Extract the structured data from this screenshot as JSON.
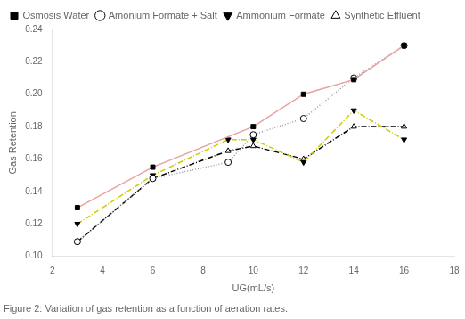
{
  "chart_data": {
    "type": "line",
    "title": "Figure 2: Variation of gas retention as a function of aeration rates.",
    "x_label": "UG(mL/s)",
    "y_label": "Gas Retention",
    "xlim": [
      2,
      18
    ],
    "ylim": [
      0.1,
      0.24
    ],
    "xticks": [
      2,
      4,
      6,
      8,
      10,
      12,
      14,
      16,
      18
    ],
    "yticks": [
      {
        "value": 0.1,
        "label": "0.10"
      },
      0.12,
      0.14,
      0.16,
      0.18,
      {
        "value": 0.2,
        "label": "0.20"
      },
      0.22,
      0.24
    ],
    "grid": false,
    "legend": "upper left",
    "series": [
      {
        "name": "Osmosis Water",
        "color": "#e8a0a0",
        "marker": "square",
        "line_style": "solid",
        "x": [
          3,
          6,
          10,
          12,
          14,
          16
        ],
        "values": [
          0.13,
          0.155,
          0.18,
          0.2,
          0.209,
          0.23
        ]
      },
      {
        "name": "Amonium Formate + Salt",
        "color": "#999999",
        "marker": "circle",
        "line_style": "dotted",
        "x": [
          3,
          6,
          9,
          10,
          12,
          14,
          16
        ],
        "values": [
          0.109,
          0.148,
          0.158,
          0.175,
          0.185,
          0.21,
          0.23
        ]
      },
      {
        "name": "Ammonium Formate",
        "color": "#cccc00",
        "marker": "triangle-down",
        "line_style": "dashdot",
        "x": [
          3,
          6,
          9,
          10,
          12,
          14,
          16
        ],
        "values": [
          0.12,
          0.15,
          0.172,
          0.172,
          0.158,
          0.19,
          0.172
        ]
      },
      {
        "name": "Synthetic Effluent",
        "color": "#000000",
        "marker": "triangle-up",
        "line_style": "dashdot",
        "x": [
          3,
          6,
          9,
          10,
          12,
          14,
          16
        ],
        "values": [
          0.109,
          0.148,
          0.165,
          0.168,
          0.16,
          0.18,
          0.18
        ]
      }
    ]
  }
}
